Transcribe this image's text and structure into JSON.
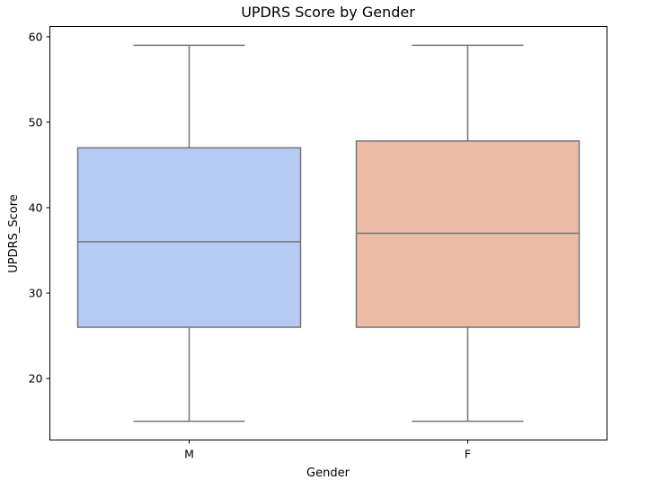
{
  "chart_data": {
    "type": "box",
    "title": "UPDRS Score by Gender",
    "xlabel": "Gender",
    "ylabel": "UPDRS_Score",
    "categories": [
      "M",
      "F"
    ],
    "ylim": [
      12.8,
      61.2
    ],
    "yticks": [
      20,
      30,
      40,
      50,
      60
    ],
    "grid": false,
    "legend": "none",
    "boxes": [
      {
        "category": "M",
        "whisker_low": 15,
        "q1": 26,
        "median": 36,
        "q3": 47,
        "whisker_high": 59,
        "color": "#b5cbf4"
      },
      {
        "category": "F",
        "whisker_low": 15,
        "q1": 26,
        "median": 37,
        "q3": 47.8,
        "whisker_high": 59,
        "color": "#edbca7"
      }
    ],
    "line_color": "#757575"
  }
}
